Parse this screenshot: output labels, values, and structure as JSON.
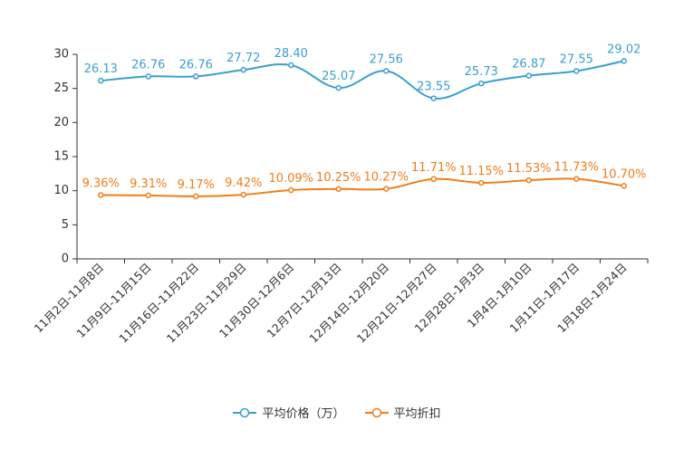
{
  "chart_data": {
    "type": "line",
    "categories": [
      "11月2日-11月8日",
      "11月9日-11月15日",
      "11月16日-11月22日",
      "11月23日-11月29日",
      "11月30日-12月6日",
      "12月7日-12月13日",
      "12月14日-12月20日",
      "12月21日-12月27日",
      "12月28日-1月3日",
      "1月4日-1月10日",
      "1月11日-1月17日",
      "1月18日-1月24日"
    ],
    "ylim": [
      0,
      30
    ],
    "yticks": [
      "0",
      "5",
      "10",
      "15",
      "20",
      "25",
      "30"
    ],
    "series": [
      {
        "name": "平均价格（万）",
        "color": "#3a9fcf",
        "values": [
          26.13,
          26.76,
          26.76,
          27.72,
          28.4,
          25.07,
          27.56,
          23.55,
          25.73,
          26.87,
          27.55,
          29.02
        ],
        "labels": [
          "26.13",
          "26.76",
          "26.76",
          "27.72",
          "28.40",
          "25.07",
          "27.56",
          "23.55",
          "25.73",
          "26.87",
          "27.55",
          "29.02"
        ]
      },
      {
        "name": "平均折扣",
        "color": "#f07e19",
        "values": [
          9.36,
          9.31,
          9.17,
          9.42,
          10.09,
          10.25,
          10.27,
          11.71,
          11.15,
          11.53,
          11.73,
          10.7
        ],
        "labels": [
          "9.36%",
          "9.31%",
          "9.17%",
          "9.42%",
          "10.09%",
          "10.25%",
          "10.27%",
          "11.71%",
          "11.15%",
          "11.53%",
          "11.73%",
          "10.70%"
        ]
      }
    ],
    "legend_position": "bottom-center"
  }
}
